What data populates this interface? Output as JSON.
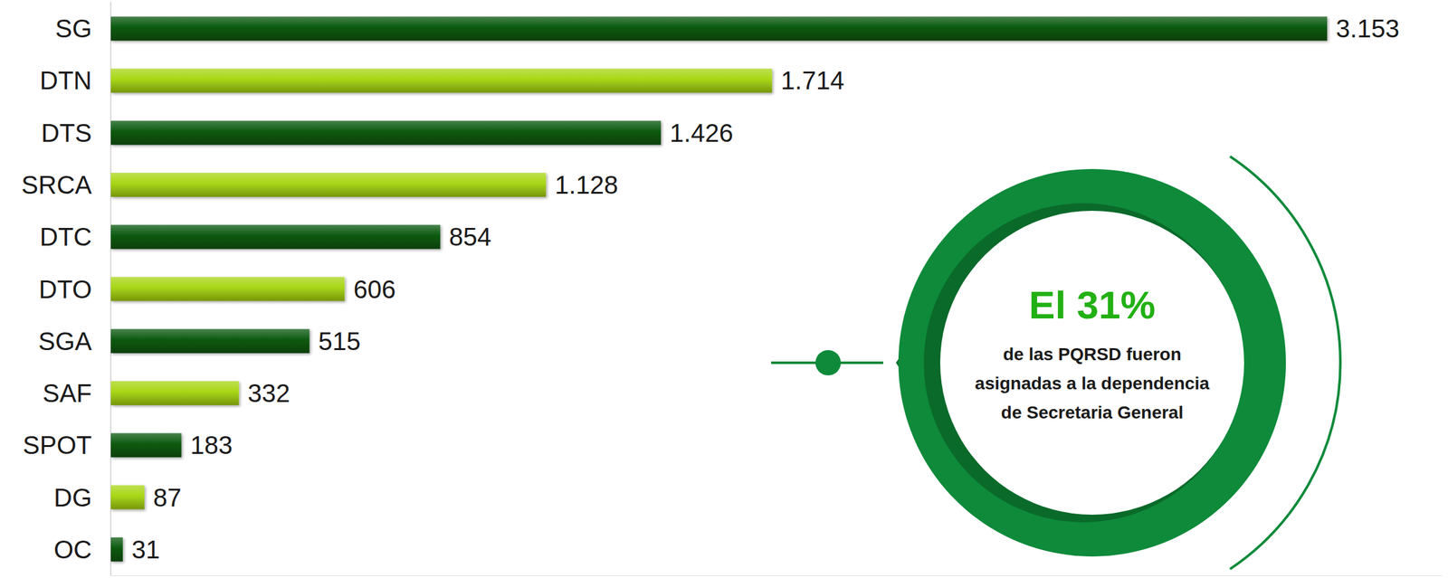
{
  "chart_data": {
    "type": "bar",
    "orientation": "horizontal",
    "categories": [
      "SG",
      "DTN",
      "DTS",
      "SRCA",
      "DTC",
      "DTO",
      "SGA",
      "SAF",
      "SPOT",
      "DG",
      "OC"
    ],
    "values": [
      3153,
      1714,
      1426,
      1128,
      854,
      606,
      515,
      332,
      183,
      87,
      31
    ],
    "value_labels": [
      "3.153",
      "1.714",
      "1.426",
      "1.128",
      "854",
      "606",
      "515",
      "332",
      "183",
      "87",
      "31"
    ],
    "colors": [
      "#0b5a10",
      "#a8d615",
      "#0b5a10",
      "#a8d615",
      "#0b5a10",
      "#a8d615",
      "#0b5a10",
      "#a8d615",
      "#0b5a10",
      "#a8d615",
      "#0b5a10"
    ],
    "xlim": [
      0,
      3450
    ],
    "data_labels": true,
    "tick_labels": "y",
    "grid": false,
    "annotation": {
      "headline": "El 31%",
      "lines": [
        "de las PQRSD fueron",
        "asignadas a la dependencia",
        "de Secretaria General"
      ]
    }
  }
}
